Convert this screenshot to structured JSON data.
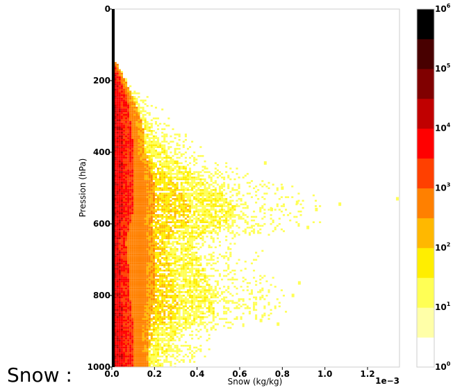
{
  "caption": "Snow :",
  "chart_data": {
    "type": "heatmap",
    "title": "",
    "xlabel": "Snow (kg/kg)",
    "ylabel": "Pression (hPa)",
    "x_offset_label": "1e−3",
    "xlim": [
      0,
      1.35
    ],
    "ylim": [
      1000,
      0
    ],
    "x_unit_scale": 0.001,
    "x_ticks": [
      0,
      0.2,
      0.4,
      0.6,
      0.8,
      1.0,
      1.2
    ],
    "x_tick_labels": [
      "0.0",
      "0.2",
      "0.4",
      "0.6",
      "0.8",
      "1.0",
      "1.2"
    ],
    "y_ticks": [
      0,
      200,
      400,
      600,
      800,
      1000
    ],
    "y_tick_labels": [
      "0",
      "200",
      "400",
      "600",
      "800",
      "1000"
    ],
    "grid": false,
    "scale": "log count",
    "colorbar": {
      "levels": [
        "10^0",
        "10^1",
        "10^2",
        "10^3",
        "10^4",
        "10^5",
        "10^6"
      ],
      "label_bases": [
        "10",
        "10",
        "10",
        "10",
        "10",
        "10",
        "10"
      ],
      "label_exponents": [
        "0",
        "1",
        "2",
        "3",
        "4",
        "5",
        "6"
      ],
      "colors": [
        "#ffffff",
        "#ffffa8",
        "#ffff55",
        "#ffee00",
        "#ffb800",
        "#ff8000",
        "#ff4000",
        "#ff0000",
        "#c00000",
        "#800000",
        "#480000",
        "#000000"
      ]
    },
    "description_of_data": "2D histogram of snow mixing ratio vs pressure; counts highest at snow≈0 (black column), decreasing outward; populated region spans ~150–1000 hPa, max x ≈ 1.35e-3 kg/kg near 530 hPa",
    "envelope": {
      "pressure": [
        150,
        200,
        250,
        300,
        350,
        400,
        450,
        500,
        550,
        600,
        650,
        700,
        750,
        800,
        850,
        900,
        950,
        1000
      ],
      "max_snow": [
        0.03,
        0.08,
        0.2,
        0.27,
        0.36,
        0.47,
        0.66,
        0.9,
        1.05,
        1.0,
        0.68,
        0.74,
        0.8,
        0.88,
        0.87,
        0.55,
        0.5,
        0.42
      ],
      "red_extent": [
        0.01,
        0.04,
        0.07,
        0.08,
        0.09,
        0.1,
        0.1,
        0.1,
        0.1,
        0.08,
        0.06,
        0.07,
        0.08,
        0.08,
        0.09,
        0.1,
        0.1,
        0.1
      ],
      "orange_extent": [
        0.02,
        0.06,
        0.1,
        0.13,
        0.15,
        0.15,
        0.18,
        0.2,
        0.2,
        0.18,
        0.2,
        0.2,
        0.2,
        0.2,
        0.18,
        0.17,
        0.17,
        0.17
      ]
    },
    "outliers": [
      [
        1.34,
        530
      ],
      [
        1.07,
        545
      ],
      [
        0.96,
        560
      ],
      [
        0.92,
        610
      ],
      [
        0.87,
        540
      ],
      [
        0.8,
        500
      ],
      [
        0.75,
        560
      ],
      [
        0.72,
        430
      ],
      [
        0.88,
        765
      ],
      [
        0.85,
        800
      ],
      [
        0.78,
        880
      ],
      [
        0.7,
        870
      ]
    ]
  }
}
